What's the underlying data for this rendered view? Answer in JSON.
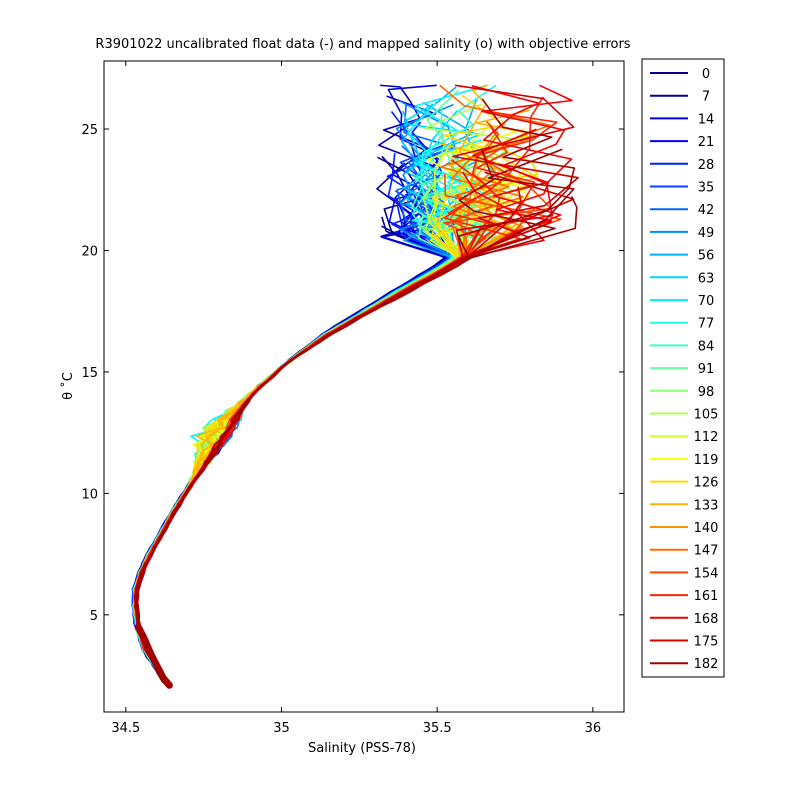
{
  "chart_data": {
    "type": "line",
    "title": "R3901022 uncalibrated float data (-) and mapped salinity (o) with objective errors",
    "xlabel": "Salinity (PSS-78)",
    "ylabel": "θ ˚C",
    "xlim": [
      34.43,
      36.1
    ],
    "ylim": [
      1.0,
      27.8
    ],
    "x_ticks": [
      34.5,
      35,
      35.5,
      36
    ],
    "x_tick_labels": [
      "34.5",
      "35",
      "35.5",
      "36"
    ],
    "y_ticks": [
      5,
      10,
      15,
      20,
      25
    ],
    "y_tick_labels": [
      "5",
      "10",
      "15",
      "20",
      "25"
    ],
    "grid": false,
    "legend_placement": "right-outside",
    "colormap": "jet",
    "series": [
      {
        "name": "0",
        "color": "#00008f"
      },
      {
        "name": "7",
        "color": "#0000b3"
      },
      {
        "name": "14",
        "color": "#0000d7"
      },
      {
        "name": "21",
        "color": "#0000fb"
      },
      {
        "name": "28",
        "color": "#0020ff"
      },
      {
        "name": "35",
        "color": "#0044ff"
      },
      {
        "name": "42",
        "color": "#0068ff"
      },
      {
        "name": "49",
        "color": "#008cff"
      },
      {
        "name": "56",
        "color": "#00b0ff"
      },
      {
        "name": "63",
        "color": "#00d4ff"
      },
      {
        "name": "70",
        "color": "#00f8ff"
      },
      {
        "name": "77",
        "color": "#1cffe3"
      },
      {
        "name": "84",
        "color": "#40ffbf"
      },
      {
        "name": "91",
        "color": "#64ff9b"
      },
      {
        "name": "98",
        "color": "#88ff77"
      },
      {
        "name": "105",
        "color": "#acff53"
      },
      {
        "name": "112",
        "color": "#d0ff2f"
      },
      {
        "name": "119",
        "color": "#f4ff0b"
      },
      {
        "name": "126",
        "color": "#ffd800"
      },
      {
        "name": "133",
        "color": "#ffb400"
      },
      {
        "name": "140",
        "color": "#ff9000"
      },
      {
        "name": "147",
        "color": "#ff6c00"
      },
      {
        "name": "154",
        "color": "#ff4800"
      },
      {
        "name": "161",
        "color": "#ff2400"
      },
      {
        "name": "168",
        "color": "#f40000"
      },
      {
        "name": "175",
        "color": "#d00000"
      },
      {
        "name": "182",
        "color": "#a00000"
      }
    ],
    "mean_profile": {
      "s": [
        34.63,
        34.6,
        34.56,
        34.54,
        34.53,
        34.53,
        34.55,
        34.58,
        34.62,
        34.66,
        34.7,
        34.74,
        34.78,
        34.82,
        34.86,
        34.92,
        35.02,
        35.15,
        35.3,
        35.42,
        35.52,
        35.6
      ],
      "t": [
        2.2,
        2.8,
        3.6,
        4.4,
        5.2,
        6.0,
        6.8,
        7.6,
        8.5,
        9.4,
        10.2,
        11.0,
        11.8,
        12.6,
        13.4,
        14.3,
        15.4,
        16.6,
        17.7,
        18.6,
        19.3,
        20.0
      ]
    },
    "deep_blob": {
      "s": [
        34.54,
        34.56,
        34.58,
        34.6,
        34.62,
        34.64
      ],
      "t": [
        4.5,
        4.0,
        3.4,
        2.9,
        2.4,
        2.1
      ]
    },
    "cloud_extent": {
      "blue_fresh_s": [
        35.3,
        35.48
      ],
      "red_salty_s": [
        35.55,
        35.98
      ],
      "t_range": [
        19.0,
        26.8
      ]
    }
  }
}
